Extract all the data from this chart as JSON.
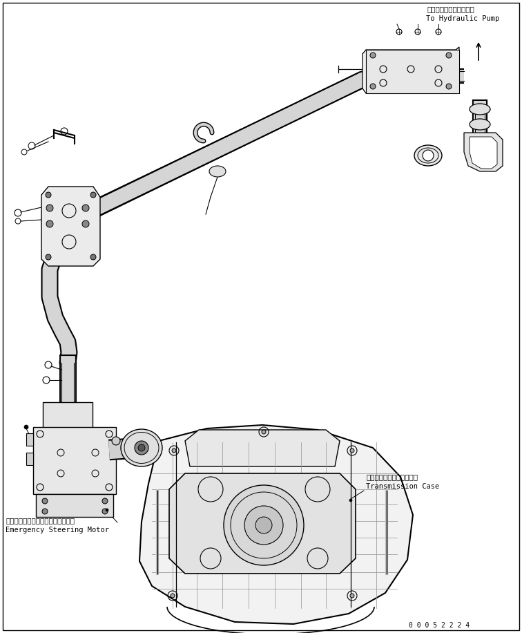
{
  "title": "",
  "background_color": "#ffffff",
  "line_color": "#000000",
  "text_color": "#000000",
  "figsize": [
    7.56,
    9.16
  ],
  "dpi": 100,
  "labels": {
    "hydraulic_pump_ja": "ハイドロリックポンプへ",
    "hydraulic_pump_en": "To Hydraulic Pump",
    "transmission_case_ja": "トランスミッションケース",
    "transmission_case_en": "Transmission Case",
    "emergency_motor_ja": "エマージェンシステアリングモータ",
    "emergency_motor_en": "Emergency Steering Motor"
  },
  "part_number": "0 0 0 5 2 2 2 4",
  "font_size_label_ja": 7.5,
  "font_size_label_en": 7.5,
  "font_size_part": 7.0
}
